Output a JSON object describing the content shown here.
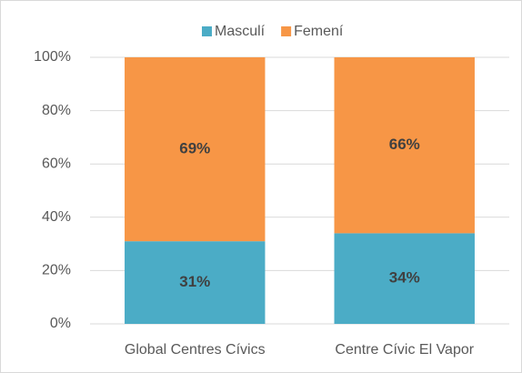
{
  "chart_data": {
    "type": "stacked_bar",
    "categories": [
      "Global Centres Cívics",
      "Centre Cívic El Vapor"
    ],
    "series": [
      {
        "name": "Masculí",
        "color": "#4bacc6",
        "values": [
          31,
          34
        ],
        "value_labels": [
          "31%",
          "34%"
        ]
      },
      {
        "name": "Femení",
        "color": "#f79646",
        "values": [
          69,
          66
        ],
        "value_labels": [
          "69%",
          "66%"
        ]
      }
    ],
    "ylim": [
      0,
      100
    ],
    "yticks": [
      {
        "value": 0,
        "label": "0%"
      },
      {
        "value": 20,
        "label": "20%"
      },
      {
        "value": 40,
        "label": "40%"
      },
      {
        "value": 60,
        "label": "60%"
      },
      {
        "value": 80,
        "label": "80%"
      },
      {
        "value": 100,
        "label": "100%"
      }
    ],
    "grid": true,
    "legend": "top"
  }
}
